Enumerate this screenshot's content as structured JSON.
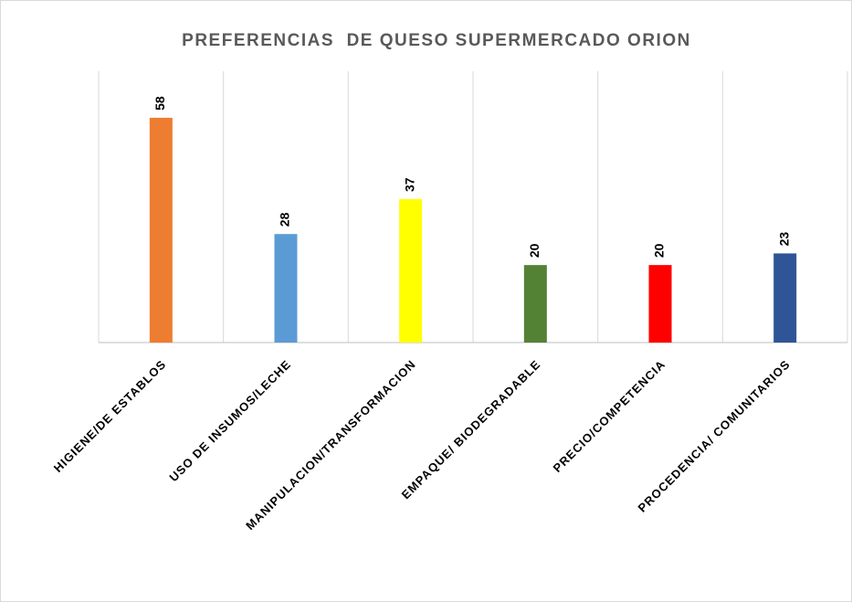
{
  "chart_data": {
    "type": "bar",
    "title": "PREFERENCIAS  DE QUESO SUPERMERCADO ORION",
    "categories": [
      "HIGIENE/DE ESTABLOS",
      "USO DE INSUMOS/LECHE",
      "MANIPULACION/TRANSFORMACION",
      "EMPAQUE/ BIODEGRADABLE",
      "PRECIO/COMPETENCIA",
      "PROCEDENCIA/ COMUNITARIOS"
    ],
    "values": [
      58,
      28,
      37,
      20,
      20,
      23
    ],
    "colors": [
      "#ed7d31",
      "#5b9bd5",
      "#ffff00",
      "#548235",
      "#ff0000",
      "#2f5597"
    ],
    "ylim": [
      0,
      70
    ],
    "grid": true
  }
}
